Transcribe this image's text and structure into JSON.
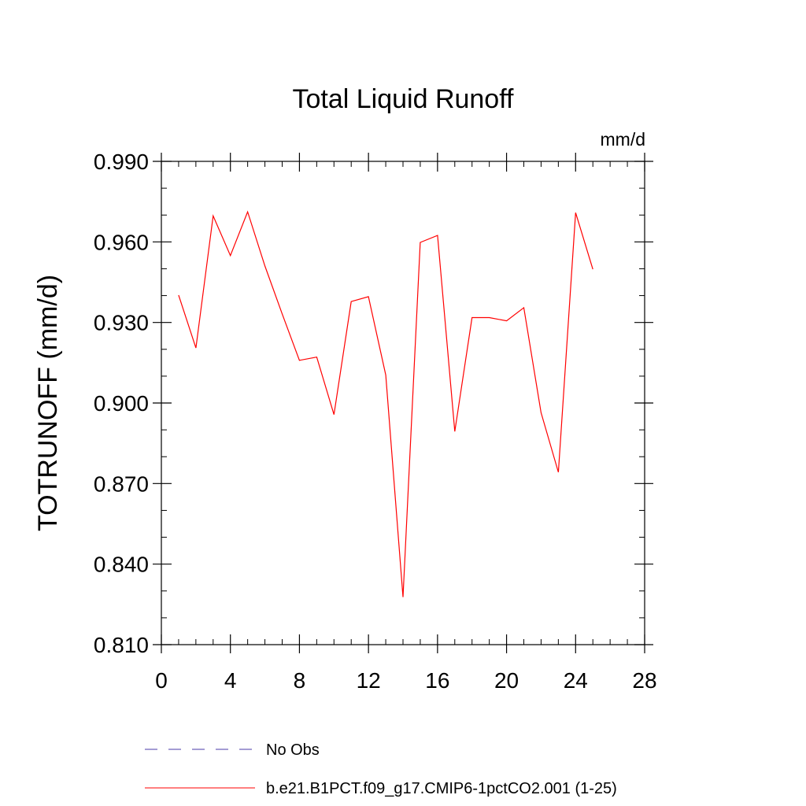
{
  "chart_data": {
    "type": "line",
    "title": "Total Liquid Runoff",
    "units_label": "mm/d",
    "ylabel": "TOTRUNOFF  (mm/d)",
    "xlabel": "",
    "xlim": [
      0,
      28
    ],
    "ylim": [
      0.81,
      0.99
    ],
    "x_ticks": [
      0,
      4,
      8,
      12,
      16,
      20,
      24,
      28
    ],
    "x_tick_labels": [
      "0",
      "4",
      "8",
      "12",
      "16",
      "20",
      "24",
      "28"
    ],
    "y_ticks": [
      0.81,
      0.84,
      0.87,
      0.9,
      0.93,
      0.96,
      0.99
    ],
    "y_tick_labels": [
      "0.810",
      "0.840",
      "0.870",
      "0.900",
      "0.930",
      "0.960",
      "0.990"
    ],
    "grid": false,
    "legend_position": "bottom",
    "series": [
      {
        "name": "No Obs",
        "color": "#4a3aa8",
        "style": "dashed",
        "x": [],
        "y": []
      },
      {
        "name": "b.e21.B1PCT.f09_g17.CMIP6-1pctCO2.001 (1-25)",
        "color": "#ff0000",
        "style": "solid",
        "x": [
          1,
          2,
          3,
          4,
          5,
          6,
          7,
          8,
          9,
          10,
          11,
          12,
          13,
          14,
          15,
          16,
          17,
          18,
          19,
          20,
          21,
          22,
          23,
          24,
          25
        ],
        "y": [
          0.9402,
          0.9205,
          0.9697,
          0.9549,
          0.9712,
          0.951,
          0.9332,
          0.9159,
          0.9171,
          0.8957,
          0.9378,
          0.9396,
          0.9104,
          0.8277,
          0.9598,
          0.9624,
          0.8894,
          0.9318,
          0.9318,
          0.9306,
          0.9355,
          0.8964,
          0.8742,
          0.9709,
          0.9498
        ]
      }
    ]
  }
}
